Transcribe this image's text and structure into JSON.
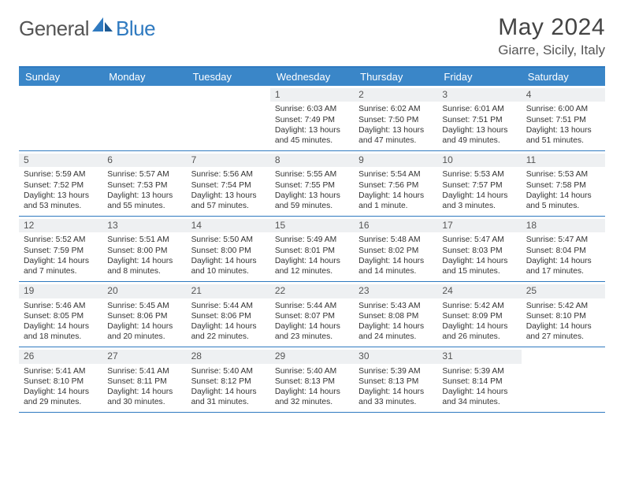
{
  "brand": {
    "part1": "General",
    "part2": "Blue"
  },
  "title": "May 2024",
  "location": "Giarre, Sicily, Italy",
  "colors": {
    "header_bg": "#3a86c8",
    "header_text": "#ffffff",
    "divider": "#2f7ac0",
    "daynum_bg": "#eef0f2",
    "text": "#333333",
    "page_bg": "#ffffff"
  },
  "day_labels": [
    "Sunday",
    "Monday",
    "Tuesday",
    "Wednesday",
    "Thursday",
    "Friday",
    "Saturday"
  ],
  "weeks": [
    [
      {
        "n": "",
        "sr": "",
        "ss": "",
        "dl": ""
      },
      {
        "n": "",
        "sr": "",
        "ss": "",
        "dl": ""
      },
      {
        "n": "",
        "sr": "",
        "ss": "",
        "dl": ""
      },
      {
        "n": "1",
        "sr": "Sunrise: 6:03 AM",
        "ss": "Sunset: 7:49 PM",
        "dl": "Daylight: 13 hours and 45 minutes."
      },
      {
        "n": "2",
        "sr": "Sunrise: 6:02 AM",
        "ss": "Sunset: 7:50 PM",
        "dl": "Daylight: 13 hours and 47 minutes."
      },
      {
        "n": "3",
        "sr": "Sunrise: 6:01 AM",
        "ss": "Sunset: 7:51 PM",
        "dl": "Daylight: 13 hours and 49 minutes."
      },
      {
        "n": "4",
        "sr": "Sunrise: 6:00 AM",
        "ss": "Sunset: 7:51 PM",
        "dl": "Daylight: 13 hours and 51 minutes."
      }
    ],
    [
      {
        "n": "5",
        "sr": "Sunrise: 5:59 AM",
        "ss": "Sunset: 7:52 PM",
        "dl": "Daylight: 13 hours and 53 minutes."
      },
      {
        "n": "6",
        "sr": "Sunrise: 5:57 AM",
        "ss": "Sunset: 7:53 PM",
        "dl": "Daylight: 13 hours and 55 minutes."
      },
      {
        "n": "7",
        "sr": "Sunrise: 5:56 AM",
        "ss": "Sunset: 7:54 PM",
        "dl": "Daylight: 13 hours and 57 minutes."
      },
      {
        "n": "8",
        "sr": "Sunrise: 5:55 AM",
        "ss": "Sunset: 7:55 PM",
        "dl": "Daylight: 13 hours and 59 minutes."
      },
      {
        "n": "9",
        "sr": "Sunrise: 5:54 AM",
        "ss": "Sunset: 7:56 PM",
        "dl": "Daylight: 14 hours and 1 minute."
      },
      {
        "n": "10",
        "sr": "Sunrise: 5:53 AM",
        "ss": "Sunset: 7:57 PM",
        "dl": "Daylight: 14 hours and 3 minutes."
      },
      {
        "n": "11",
        "sr": "Sunrise: 5:53 AM",
        "ss": "Sunset: 7:58 PM",
        "dl": "Daylight: 14 hours and 5 minutes."
      }
    ],
    [
      {
        "n": "12",
        "sr": "Sunrise: 5:52 AM",
        "ss": "Sunset: 7:59 PM",
        "dl": "Daylight: 14 hours and 7 minutes."
      },
      {
        "n": "13",
        "sr": "Sunrise: 5:51 AM",
        "ss": "Sunset: 8:00 PM",
        "dl": "Daylight: 14 hours and 8 minutes."
      },
      {
        "n": "14",
        "sr": "Sunrise: 5:50 AM",
        "ss": "Sunset: 8:00 PM",
        "dl": "Daylight: 14 hours and 10 minutes."
      },
      {
        "n": "15",
        "sr": "Sunrise: 5:49 AM",
        "ss": "Sunset: 8:01 PM",
        "dl": "Daylight: 14 hours and 12 minutes."
      },
      {
        "n": "16",
        "sr": "Sunrise: 5:48 AM",
        "ss": "Sunset: 8:02 PM",
        "dl": "Daylight: 14 hours and 14 minutes."
      },
      {
        "n": "17",
        "sr": "Sunrise: 5:47 AM",
        "ss": "Sunset: 8:03 PM",
        "dl": "Daylight: 14 hours and 15 minutes."
      },
      {
        "n": "18",
        "sr": "Sunrise: 5:47 AM",
        "ss": "Sunset: 8:04 PM",
        "dl": "Daylight: 14 hours and 17 minutes."
      }
    ],
    [
      {
        "n": "19",
        "sr": "Sunrise: 5:46 AM",
        "ss": "Sunset: 8:05 PM",
        "dl": "Daylight: 14 hours and 18 minutes."
      },
      {
        "n": "20",
        "sr": "Sunrise: 5:45 AM",
        "ss": "Sunset: 8:06 PM",
        "dl": "Daylight: 14 hours and 20 minutes."
      },
      {
        "n": "21",
        "sr": "Sunrise: 5:44 AM",
        "ss": "Sunset: 8:06 PM",
        "dl": "Daylight: 14 hours and 22 minutes."
      },
      {
        "n": "22",
        "sr": "Sunrise: 5:44 AM",
        "ss": "Sunset: 8:07 PM",
        "dl": "Daylight: 14 hours and 23 minutes."
      },
      {
        "n": "23",
        "sr": "Sunrise: 5:43 AM",
        "ss": "Sunset: 8:08 PM",
        "dl": "Daylight: 14 hours and 24 minutes."
      },
      {
        "n": "24",
        "sr": "Sunrise: 5:42 AM",
        "ss": "Sunset: 8:09 PM",
        "dl": "Daylight: 14 hours and 26 minutes."
      },
      {
        "n": "25",
        "sr": "Sunrise: 5:42 AM",
        "ss": "Sunset: 8:10 PM",
        "dl": "Daylight: 14 hours and 27 minutes."
      }
    ],
    [
      {
        "n": "26",
        "sr": "Sunrise: 5:41 AM",
        "ss": "Sunset: 8:10 PM",
        "dl": "Daylight: 14 hours and 29 minutes."
      },
      {
        "n": "27",
        "sr": "Sunrise: 5:41 AM",
        "ss": "Sunset: 8:11 PM",
        "dl": "Daylight: 14 hours and 30 minutes."
      },
      {
        "n": "28",
        "sr": "Sunrise: 5:40 AM",
        "ss": "Sunset: 8:12 PM",
        "dl": "Daylight: 14 hours and 31 minutes."
      },
      {
        "n": "29",
        "sr": "Sunrise: 5:40 AM",
        "ss": "Sunset: 8:13 PM",
        "dl": "Daylight: 14 hours and 32 minutes."
      },
      {
        "n": "30",
        "sr": "Sunrise: 5:39 AM",
        "ss": "Sunset: 8:13 PM",
        "dl": "Daylight: 14 hours and 33 minutes."
      },
      {
        "n": "31",
        "sr": "Sunrise: 5:39 AM",
        "ss": "Sunset: 8:14 PM",
        "dl": "Daylight: 14 hours and 34 minutes."
      },
      {
        "n": "",
        "sr": "",
        "ss": "",
        "dl": ""
      }
    ]
  ]
}
